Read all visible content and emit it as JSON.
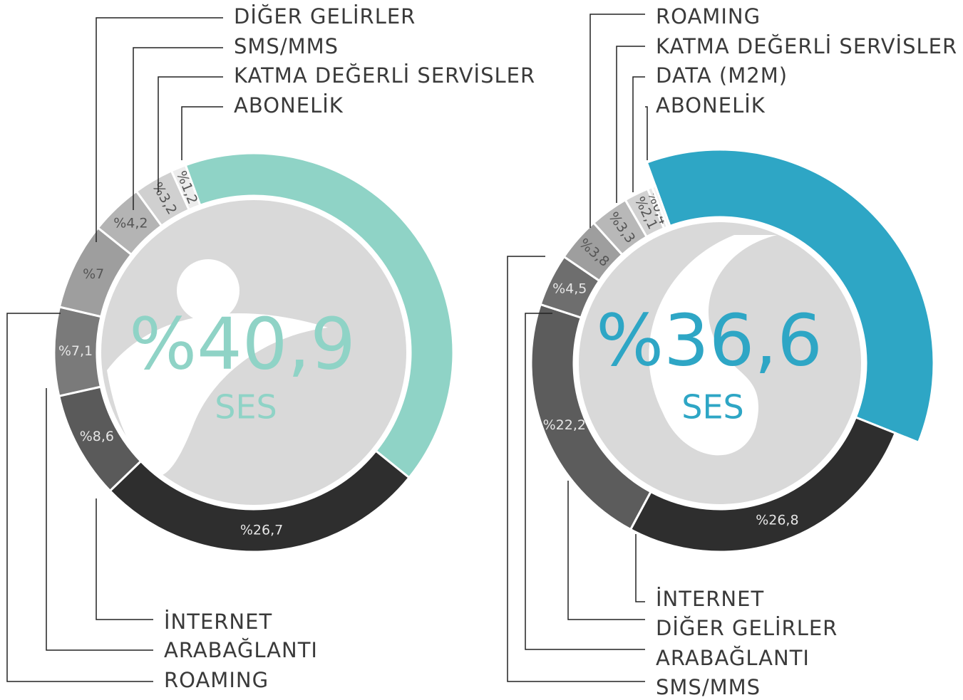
{
  "chart_data": [
    {
      "type": "pie",
      "categories": [
        "SES",
        "İNTERNET",
        "ARABAĞLANTI",
        "ROAMING",
        "DİĞER GELİRLER",
        "SMS/MMS",
        "KATMA DEĞERLİ SERVİSLER",
        "ABONELİK"
      ],
      "values": [
        40.9,
        26.7,
        8.6,
        7.1,
        7,
        4.2,
        3.2,
        1.2
      ],
      "value_labels": [
        "%40,9",
        "%26,7",
        "%8,6",
        "%7,1",
        "%7",
        "%4,2",
        "%3,2",
        "%1,2"
      ],
      "colors": [
        "#8fd3c6",
        "#2e2e2e",
        "#5a5a5a",
        "#7a7a7a",
        "#9e9e9e",
        "#b4b4b4",
        "#d0d0d0",
        "#ececec"
      ]
    },
    {
      "type": "pie",
      "categories": [
        "SES",
        "İNTERNET",
        "DİĞER GELİRLER",
        "ARABAĞLANTI",
        "SMS/MMS",
        "ROAMING",
        "KATMA DEĞERLİ SERVİSLER",
        "DATA (M2M)",
        "ABONELİK"
      ],
      "values": [
        36.6,
        26.8,
        22.2,
        4.5,
        3.8,
        3.3,
        2.1,
        0.4,
        0.3
      ],
      "value_labels": [
        "%36,6",
        "%26,8",
        "%22,2",
        "%4,5",
        "%3,8",
        "%3,3",
        "%2,1",
        "%0,4",
        null
      ],
      "colors": [
        "#2ea6c5",
        "#2e2e2e",
        "#5c5c5c",
        "#6e6e6e",
        "#9e9e9e",
        "#b8b8b8",
        "#d2d2d2",
        "#e6e6e6",
        "#f2f2f2"
      ]
    }
  ]
}
